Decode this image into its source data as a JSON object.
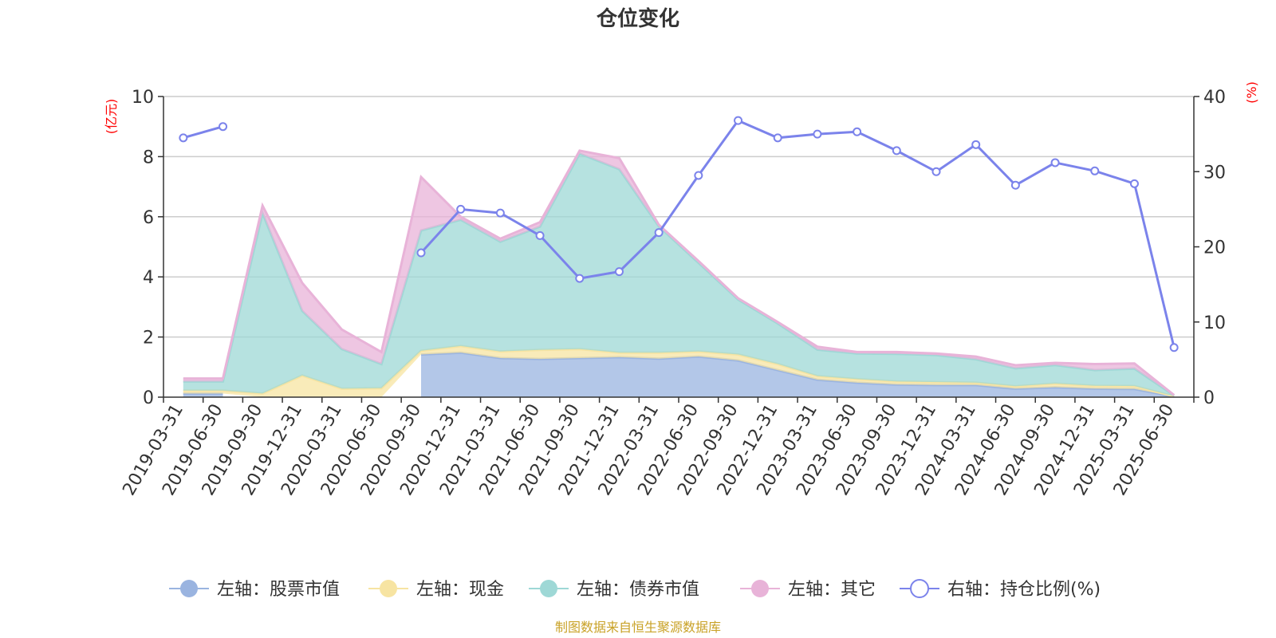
{
  "chart_data": {
    "type": "area",
    "title": "仓位变化",
    "left_axis_unit": "(亿元)",
    "right_axis_unit": "(%)",
    "ylim_left": [
      0,
      10
    ],
    "yticks_left": [
      "0",
      "2",
      "4",
      "6",
      "8",
      "10"
    ],
    "ylim_right": [
      0,
      40
    ],
    "yticks_right": [
      "0",
      "10",
      "20",
      "30",
      "40"
    ],
    "grid": true,
    "legend_position": "bottom",
    "categories": [
      "2019-03-31",
      "2019-06-30",
      "2019-09-30",
      "2019-12-31",
      "2020-03-31",
      "2020-06-30",
      "2020-09-30",
      "2020-12-31",
      "2021-03-31",
      "2021-06-30",
      "2021-09-30",
      "2021-12-31",
      "2022-03-31",
      "2022-06-30",
      "2022-09-30",
      "2022-12-31",
      "2023-03-31",
      "2023-06-30",
      "2023-09-30",
      "2023-12-31",
      "2024-03-31",
      "2024-06-30",
      "2024-09-30",
      "2024-12-31",
      "2025-03-31",
      "2025-06-30"
    ],
    "series": [
      {
        "name": "左轴：股票市值",
        "axis": "left",
        "type": "area",
        "color": "#9ab4e0",
        "values": [
          0.12,
          0.12,
          null,
          null,
          null,
          null,
          1.42,
          1.48,
          1.3,
          1.27,
          1.3,
          1.33,
          1.28,
          1.35,
          1.22,
          0.9,
          0.58,
          0.48,
          0.42,
          0.4,
          0.4,
          0.28,
          0.33,
          0.28,
          0.27,
          0.02
        ]
      },
      {
        "name": "左轴：现金",
        "axis": "left",
        "type": "area",
        "color": "#f7e4a2",
        "values": [
          0.1,
          0.1,
          0.12,
          0.72,
          0.28,
          0.3,
          0.12,
          0.22,
          0.22,
          0.3,
          0.3,
          0.15,
          0.2,
          0.17,
          0.2,
          0.2,
          0.12,
          0.12,
          0.1,
          0.1,
          0.08,
          0.08,
          0.12,
          0.1,
          0.1,
          0.01
        ]
      },
      {
        "name": "左轴：债券市值",
        "axis": "left",
        "type": "area",
        "color": "#9ed8d6",
        "values": [
          0.3,
          0.3,
          6.0,
          2.15,
          1.32,
          0.8,
          4.0,
          4.2,
          3.65,
          4.1,
          6.5,
          6.1,
          4.2,
          2.95,
          1.83,
          1.35,
          0.88,
          0.85,
          0.92,
          0.9,
          0.78,
          0.6,
          0.62,
          0.52,
          0.58,
          0.03
        ]
      },
      {
        "name": "左轴：其它",
        "axis": "left",
        "type": "area",
        "color": "#e8b3d8",
        "values": [
          0.1,
          0.1,
          0.25,
          0.93,
          0.65,
          0.4,
          1.78,
          0.1,
          0.1,
          0.15,
          0.1,
          0.37,
          0.05,
          0.06,
          0.04,
          0.05,
          0.1,
          0.05,
          0.06,
          0.05,
          0.09,
          0.1,
          0.07,
          0.2,
          0.17,
          0.01
        ]
      },
      {
        "name": "右轴：持仓比例(%)",
        "axis": "right",
        "type": "line",
        "color": "#7b83eb",
        "values": [
          34.5,
          36.0,
          null,
          null,
          null,
          null,
          19.2,
          25.0,
          24.5,
          21.5,
          15.8,
          16.7,
          21.9,
          29.5,
          36.8,
          34.5,
          35.0,
          35.3,
          32.8,
          30.0,
          33.6,
          28.2,
          31.2,
          30.1,
          28.4,
          6.6
        ]
      }
    ],
    "source_note": "制图数据来自恒生聚源数据库"
  }
}
